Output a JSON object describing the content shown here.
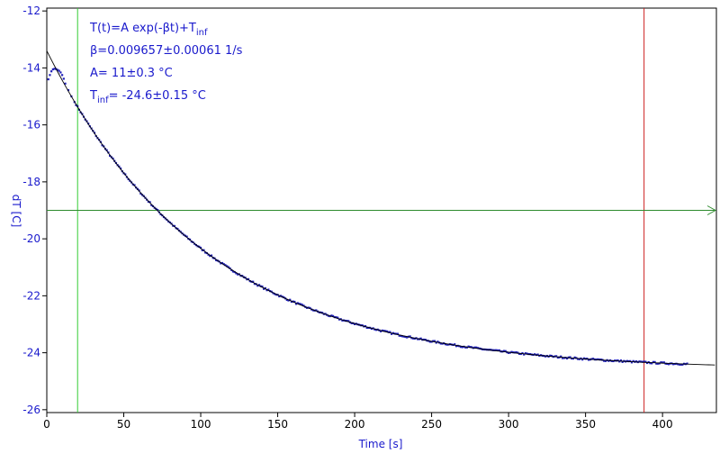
{
  "chart_data": {
    "type": "scatter",
    "xlabel": "Time [s]",
    "ylabel": "dT [C]",
    "xlim": [
      0,
      435
    ],
    "ylim": [
      -26.1,
      -11.9
    ],
    "xticks": [
      "0",
      "50",
      "100",
      "150",
      "200",
      "250",
      "300",
      "350",
      "400"
    ],
    "yticks": [
      "-12",
      "-14",
      "-16",
      "-18",
      "-20",
      "-22",
      "-24",
      "-26"
    ],
    "grid": false,
    "annotations": {
      "formula_main": "T(t)=A exp(-βt)+T",
      "formula_sub": "inf",
      "beta": "β=0.009657±0.00061 1/s",
      "amp": "A= 11±0.3 °C",
      "tinf_main": "T",
      "tinf_sub": "inf",
      "tinf_rest": "= -24.6±0.15 °C"
    },
    "fit": {
      "A": 11.2,
      "beta": 0.009657,
      "t_inf": -24.6,
      "x_range": [
        0,
        435
      ]
    },
    "series": [
      {
        "kind": "measured",
        "x_range": [
          1,
          416
        ],
        "early_points": [
          [
            1,
            -14.4
          ],
          [
            2,
            -14.25
          ],
          [
            3,
            -14.12
          ],
          [
            4,
            -14.05
          ],
          [
            5,
            -14.03
          ],
          [
            6,
            -14.04
          ],
          [
            7,
            -14.07
          ],
          [
            8,
            -14.1
          ],
          [
            9,
            -14.16
          ],
          [
            10,
            -14.25
          ],
          [
            11,
            -14.38
          ],
          [
            12,
            -14.55
          ],
          [
            14,
            -14.78
          ],
          [
            16,
            -15.0
          ],
          [
            18,
            -15.2
          ]
        ]
      }
    ],
    "markers": {
      "vertical_green_x": 20,
      "vertical_red_x": 388,
      "horizontal_green_y": -19.0
    },
    "colors": {
      "data": "#1f1fb8",
      "fit": "#000000",
      "axis_text": "#1a1acc",
      "green": "#33cc33",
      "red": "#cc2222",
      "hline": "#2e8b2e"
    }
  }
}
